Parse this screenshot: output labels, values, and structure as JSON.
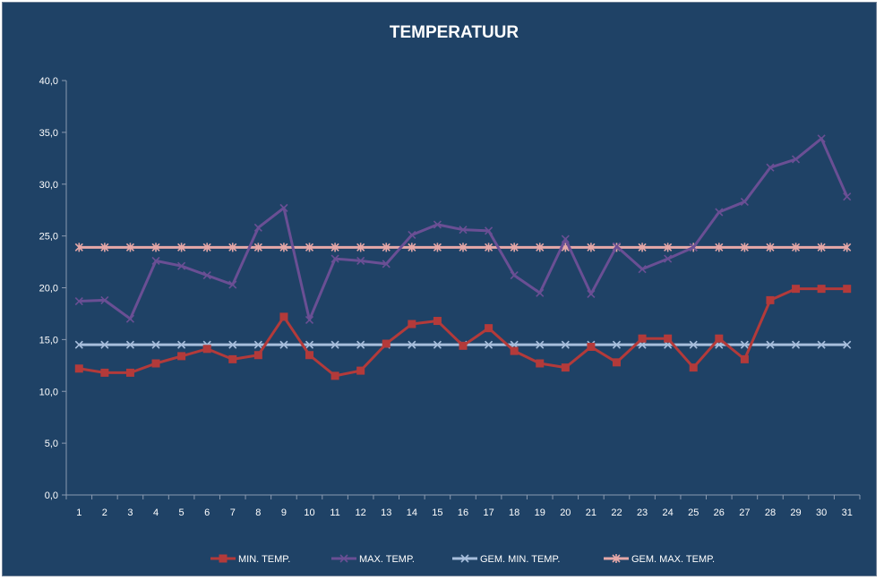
{
  "chart_data": {
    "type": "line",
    "title": "TEMPERATUUR",
    "xlabel": "",
    "ylabel": "",
    "ylim": [
      0,
      40
    ],
    "yticks": [
      "0,0",
      "5,0",
      "10,0",
      "15,0",
      "20,0",
      "25,0",
      "30,0",
      "35,0",
      "40,0"
    ],
    "grid": false,
    "legend": "bottom",
    "categories": [
      "1",
      "2",
      "3",
      "4",
      "5",
      "6",
      "7",
      "8",
      "9",
      "10",
      "11",
      "12",
      "13",
      "14",
      "15",
      "16",
      "17",
      "18",
      "19",
      "20",
      "21",
      "22",
      "23",
      "24",
      "25",
      "26",
      "27",
      "28",
      "29",
      "30",
      "31"
    ],
    "series": [
      {
        "name": "MIN. TEMP.",
        "color": "#b33a3a",
        "marker": "square",
        "values": [
          12.2,
          11.8,
          11.8,
          12.7,
          13.4,
          14.1,
          13.1,
          13.5,
          17.2,
          13.5,
          11.5,
          12.0,
          14.6,
          16.5,
          16.8,
          14.4,
          16.1,
          13.9,
          12.7,
          12.3,
          14.3,
          12.8,
          15.1,
          15.1,
          12.3,
          15.1,
          13.1,
          18.8,
          19.9,
          19.9,
          19.9
        ]
      },
      {
        "name": "MAX. TEMP.",
        "color": "#6a4f94",
        "marker": "x",
        "values": [
          18.7,
          18.8,
          17.0,
          22.6,
          22.1,
          21.2,
          20.3,
          25.8,
          27.7,
          16.9,
          22.8,
          22.6,
          22.3,
          25.1,
          26.1,
          25.6,
          25.5,
          21.2,
          19.5,
          24.7,
          19.4,
          24.0,
          21.8,
          22.8,
          23.9,
          27.3,
          28.3,
          31.6,
          32.4,
          34.4,
          28.8
        ]
      },
      {
        "name": "GEM. MIN. TEMP.",
        "color": "#a7bedc",
        "marker": "x",
        "values": [
          14.5,
          14.5,
          14.5,
          14.5,
          14.5,
          14.5,
          14.5,
          14.5,
          14.5,
          14.5,
          14.5,
          14.5,
          14.5,
          14.5,
          14.5,
          14.5,
          14.5,
          14.5,
          14.5,
          14.5,
          14.5,
          14.5,
          14.5,
          14.5,
          14.5,
          14.5,
          14.5,
          14.5,
          14.5,
          14.5,
          14.5
        ]
      },
      {
        "name": "GEM. MAX. TEMP.",
        "color": "#e6a8a8",
        "marker": "asterisk",
        "values": [
          23.9,
          23.9,
          23.9,
          23.9,
          23.9,
          23.9,
          23.9,
          23.9,
          23.9,
          23.9,
          23.9,
          23.9,
          23.9,
          23.9,
          23.9,
          23.9,
          23.9,
          23.9,
          23.9,
          23.9,
          23.9,
          23.9,
          23.9,
          23.9,
          23.9,
          23.9,
          23.9,
          23.9,
          23.9,
          23.9,
          23.9
        ]
      }
    ]
  }
}
